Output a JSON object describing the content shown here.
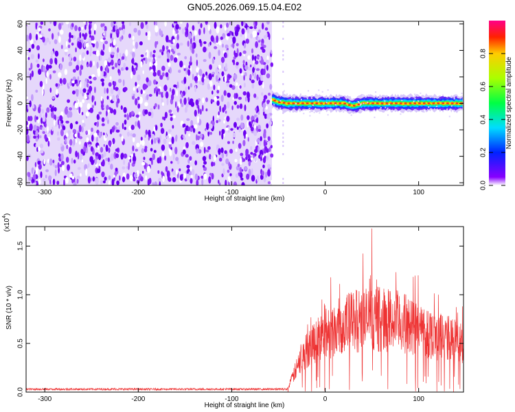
{
  "title": "GN05.2026.069.15.04.E02",
  "chart_data": [
    {
      "type": "heatmap",
      "xlabel": "Height of straight line (km)",
      "ylabel": "Frequency (Hz)",
      "xlim": [
        -320,
        148
      ],
      "ylim": [
        -62,
        62
      ],
      "xticks": [
        -300,
        -200,
        -100,
        0,
        100
      ],
      "yticks": [
        -60,
        -40,
        -20,
        0,
        20,
        40,
        60
      ],
      "noise_region_x": [
        -320,
        -57
      ],
      "signal_band": {
        "x_start": -57,
        "x_end": 148,
        "center_freq_points": [
          [
            -57,
            3
          ],
          [
            -50,
            1
          ],
          [
            -40,
            0
          ],
          [
            -20,
            0
          ],
          [
            0,
            0
          ],
          [
            20,
            0
          ],
          [
            30,
            -2
          ],
          [
            40,
            0
          ],
          [
            70,
            0
          ],
          [
            100,
            0
          ],
          [
            148,
            0
          ]
        ]
      },
      "colorbar": {
        "label": "Normalized spectral amplitude",
        "range": [
          0,
          1
        ],
        "ticks": [
          "0.0",
          "0.2",
          "0.4",
          "0.6",
          "0.8"
        ]
      }
    },
    {
      "type": "line",
      "xlabel": "Height of straight line (km)",
      "ylabel": "SNR (10 * v/v)",
      "yscale_label": "(x10",
      "yscale_exp": "4",
      "xlim": [
        -320,
        148
      ],
      "ylim": [
        0,
        1.7
      ],
      "xticks": [
        -300,
        -200,
        -100,
        0,
        100
      ],
      "yticks": [
        "0.0",
        "0.5",
        "1.0",
        "1.5"
      ],
      "line_color": "#ee3333",
      "envelope": [
        [
          -320,
          0.03
        ],
        [
          -40,
          0.03
        ],
        [
          -35,
          0.15
        ],
        [
          -25,
          0.35
        ],
        [
          -15,
          0.5
        ],
        [
          0,
          0.6
        ],
        [
          20,
          0.7
        ],
        [
          40,
          0.75
        ],
        [
          60,
          0.75
        ],
        [
          80,
          0.72
        ],
        [
          100,
          0.65
        ],
        [
          120,
          0.58
        ],
        [
          148,
          0.5
        ]
      ],
      "peak": [
        50,
        1.68
      ]
    }
  ]
}
